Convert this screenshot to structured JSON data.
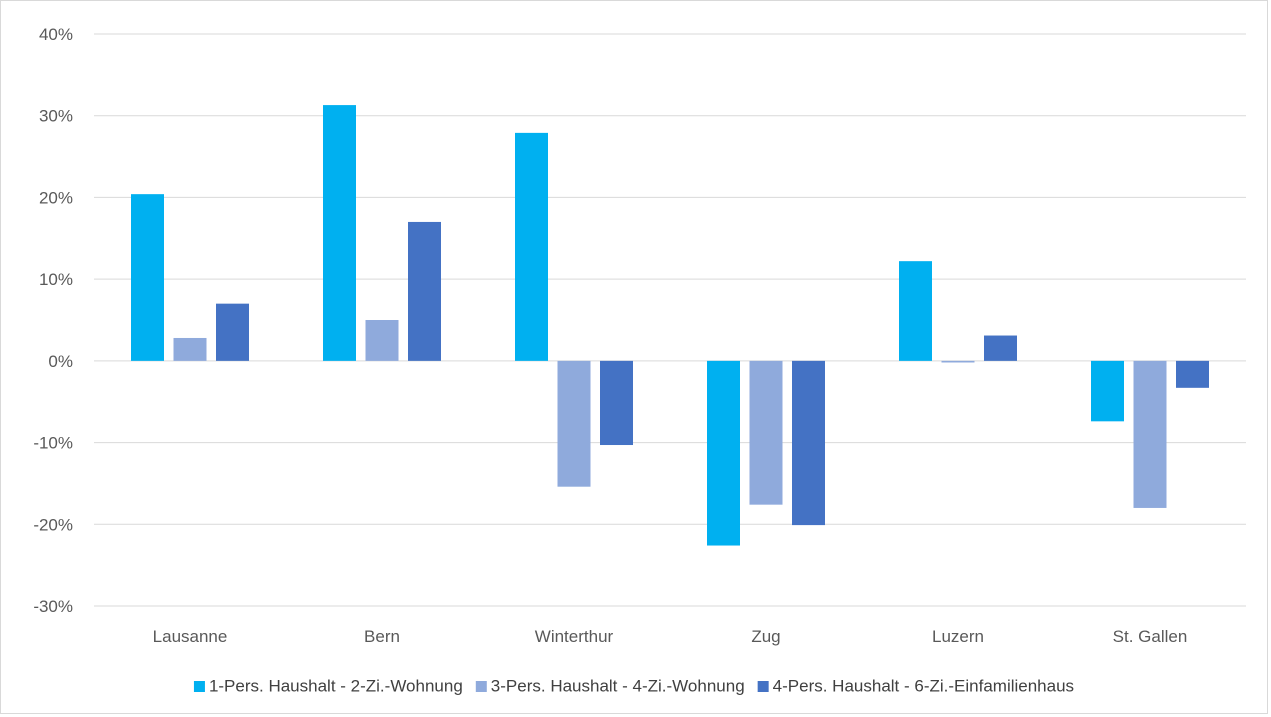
{
  "chart_data": {
    "type": "bar",
    "title": "",
    "xlabel": "",
    "ylabel": "",
    "categories": [
      "Lausanne",
      "Bern",
      "Winterthur",
      "Zug",
      "Luzern",
      "St. Gallen"
    ],
    "series": [
      {
        "name": "1-Pers. Haushalt - 2-Zi.-Wohnung",
        "color": "#00b0f0",
        "values": [
          20.4,
          31.3,
          27.9,
          -22.6,
          12.2,
          -7.4
        ]
      },
      {
        "name": "3-Pers. Haushalt - 4-Zi.-Wohnung",
        "color": "#8faadc",
        "values": [
          2.8,
          5.0,
          -15.4,
          -17.6,
          -0.2,
          -18.0
        ]
      },
      {
        "name": "4-Pers. Haushalt - 6-Zi.-Einfamilienhaus",
        "color": "#4472c4",
        "values": [
          7.0,
          17.0,
          -10.3,
          -20.1,
          3.1,
          -3.3
        ]
      }
    ],
    "ylim": [
      -30,
      40
    ],
    "yticks": [
      40,
      30,
      20,
      10,
      0,
      -10,
      -20,
      -30
    ],
    "ytick_labels": [
      "40%",
      "30%",
      "20%",
      "10%",
      "0%",
      "-10%",
      "-20%",
      "-30%"
    ],
    "grid": true,
    "legend_position": "bottom",
    "gridline_color": "#d9d9d9"
  }
}
